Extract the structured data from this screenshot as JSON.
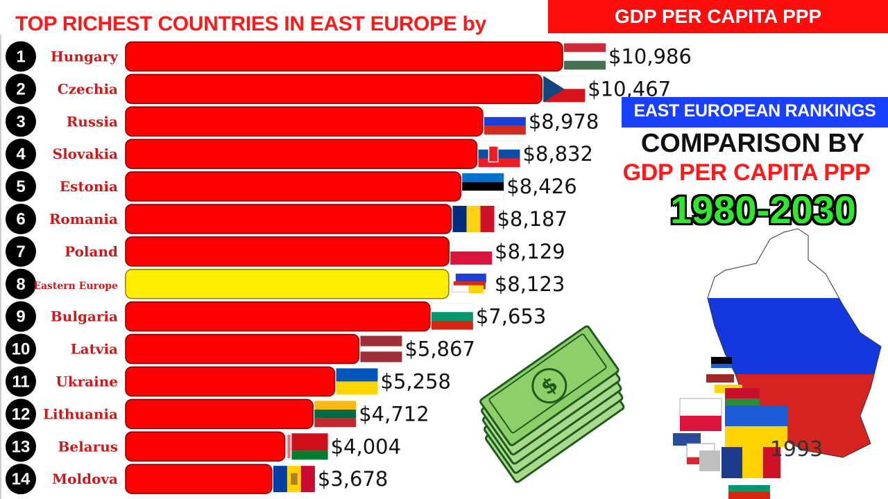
{
  "header": {
    "title": "TOP RICHEST COUNTRIES IN EAST EUROPE by",
    "top_box": "GDP PER CAPITA PPP"
  },
  "side_panel": {
    "band": "EAST EUROPEAN  RANKINGS",
    "line1": "COMPARISON BY",
    "line2": "GDP PER CAPITA PPP",
    "years": "1980-2030",
    "year_counter": "1993"
  },
  "chart_data": {
    "type": "bar",
    "orientation": "horizontal",
    "title": "TOP RICHEST COUNTRIES IN EAST EUROPE by GDP PER CAPITA PPP",
    "value_prefix": "$",
    "xlim": [
      0,
      11000
    ],
    "highlight_color": "#ffee00",
    "bar_color": "#ff0000",
    "rows": [
      {
        "rank": "1",
        "country": "Hungary",
        "value": 10986,
        "label": "$10,986",
        "flag": "hungary"
      },
      {
        "rank": "2",
        "country": "Czechia",
        "value": 10467,
        "label": "$10,467",
        "flag": "czechia"
      },
      {
        "rank": "3",
        "country": "Russia",
        "value": 8978,
        "label": "$8,978",
        "flag": "russia"
      },
      {
        "rank": "4",
        "country": "Slovakia",
        "value": 8832,
        "label": "$8,832",
        "flag": "slovakia"
      },
      {
        "rank": "5",
        "country": "Estonia",
        "value": 8426,
        "label": "$8,426",
        "flag": "estonia"
      },
      {
        "rank": "6",
        "country": "Romania",
        "value": 8187,
        "label": "$8,187",
        "flag": "romania"
      },
      {
        "rank": "7",
        "country": "Poland",
        "value": 8129,
        "label": "$8,129",
        "flag": "poland"
      },
      {
        "rank": "8",
        "country": "Eastern Europe",
        "value": 8123,
        "label": "$8,123",
        "flag": "eastern-europe",
        "highlight": true
      },
      {
        "rank": "9",
        "country": "Bulgaria",
        "value": 7653,
        "label": "$7,653",
        "flag": "bulgaria"
      },
      {
        "rank": "10",
        "country": "Latvia",
        "value": 5867,
        "label": "$5,867",
        "flag": "latvia"
      },
      {
        "rank": "11",
        "country": "Ukraine",
        "value": 5258,
        "label": "$5,258",
        "flag": "ukraine"
      },
      {
        "rank": "12",
        "country": "Lithuania",
        "value": 4712,
        "label": "$4,712",
        "flag": "lithuania"
      },
      {
        "rank": "13",
        "country": "Belarus",
        "value": 4004,
        "label": "$4,004",
        "flag": "belarus"
      },
      {
        "rank": "14",
        "country": "Moldova",
        "value": 3678,
        "label": "$3,678",
        "flag": "moldova"
      }
    ]
  }
}
